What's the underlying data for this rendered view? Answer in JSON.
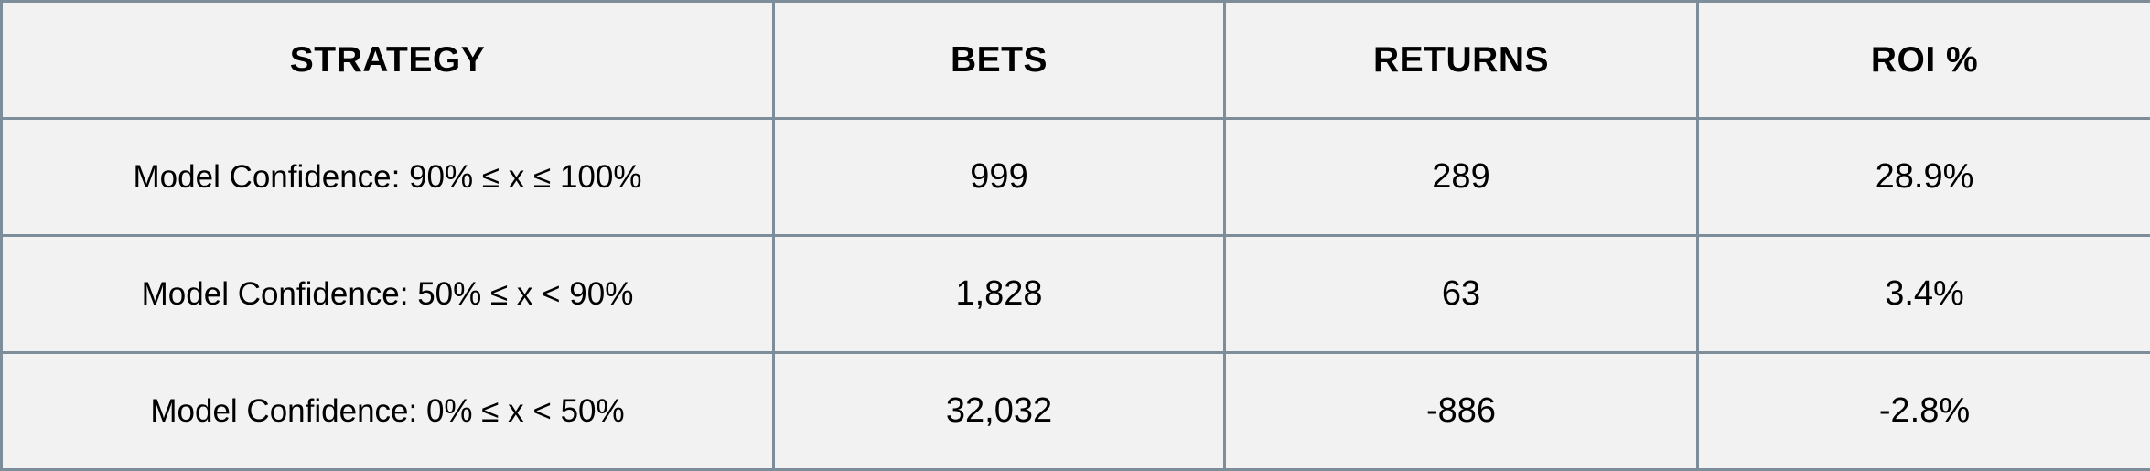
{
  "table": {
    "headers": [
      "STRATEGY",
      "BETS",
      "RETURNS",
      "ROI %"
    ],
    "rows": [
      {
        "strategy": "Model Confidence: 90% ≤ x ≤ 100%",
        "bets": "999",
        "returns": "289",
        "roi": "28.9%"
      },
      {
        "strategy": "Model Confidence: 50% ≤ x < 90%",
        "bets": "1,828",
        "returns": "63",
        "roi": "3.4%"
      },
      {
        "strategy": "Model Confidence: 0% ≤ x < 50%",
        "bets": "32,032",
        "returns": "-886",
        "roi": "-2.8%"
      }
    ]
  },
  "colors": {
    "background": "#f2f2f2",
    "border": "#7d8d99",
    "text": "#000000"
  }
}
